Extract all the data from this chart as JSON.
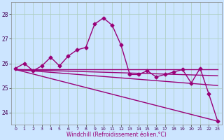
{
  "title": "",
  "xlabel": "Windchill (Refroidissement éolien,°C)",
  "ylabel": "",
  "background_color": "#cce5ff",
  "grid_color": "#aaccbb",
  "line_color": "#990077",
  "xlim": [
    -0.5,
    23.5
  ],
  "ylim": [
    23.5,
    28.5
  ],
  "yticks": [
    24,
    25,
    26,
    27,
    28
  ],
  "xticks": [
    0,
    1,
    2,
    3,
    4,
    5,
    6,
    7,
    8,
    9,
    10,
    11,
    12,
    13,
    14,
    15,
    16,
    17,
    18,
    19,
    20,
    21,
    22,
    23
  ],
  "lines": [
    {
      "x": [
        0,
        1,
        2,
        3,
        4,
        5,
        6,
        7,
        8,
        9,
        10,
        11,
        12,
        13,
        14,
        15,
        16,
        17,
        18,
        19,
        20,
        21,
        22,
        23
      ],
      "y": [
        25.8,
        26.0,
        25.7,
        25.9,
        26.25,
        25.9,
        26.3,
        26.55,
        26.65,
        27.6,
        27.85,
        27.55,
        26.75,
        25.55,
        25.55,
        25.7,
        25.45,
        25.55,
        25.65,
        25.75,
        25.2,
        25.8,
        24.75,
        23.65
      ],
      "marker": "D",
      "markersize": 2.5,
      "linewidth": 1.0,
      "has_marker": true
    },
    {
      "x": [
        0,
        23
      ],
      "y": [
        25.75,
        25.75
      ],
      "marker": null,
      "markersize": 0,
      "linewidth": 1.0,
      "has_marker": false
    },
    {
      "x": [
        0,
        23
      ],
      "y": [
        25.75,
        25.5
      ],
      "marker": null,
      "markersize": 0,
      "linewidth": 1.0,
      "has_marker": false
    },
    {
      "x": [
        0,
        23
      ],
      "y": [
        25.75,
        25.1
      ],
      "marker": null,
      "markersize": 0,
      "linewidth": 1.0,
      "has_marker": false
    },
    {
      "x": [
        0,
        23
      ],
      "y": [
        25.75,
        23.65
      ],
      "marker": null,
      "markersize": 0,
      "linewidth": 1.0,
      "has_marker": false
    }
  ]
}
